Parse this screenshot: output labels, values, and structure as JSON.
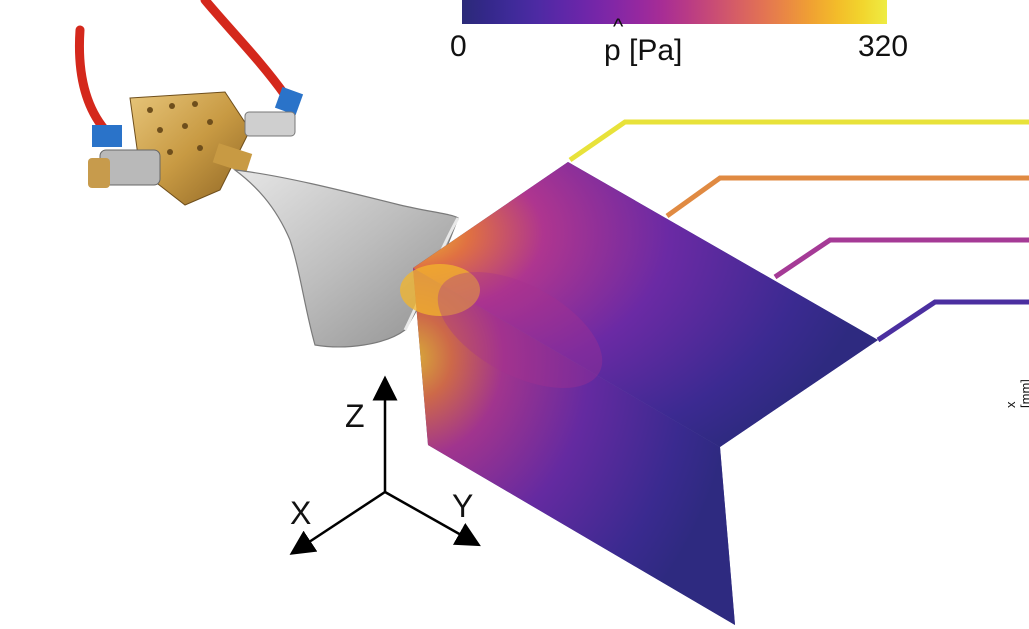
{
  "colorbar": {
    "min_label": "0",
    "max_label": "320",
    "title": "p [Pa]",
    "hat": "^",
    "colors": [
      "#2b2a78",
      "#34288a",
      "#3f2a99",
      "#4d2aa3",
      "#5e27a8",
      "#6f26a9",
      "#8127a6",
      "#9428a0",
      "#a72d95",
      "#b83a86",
      "#c84b76",
      "#d65e65",
      "#e27254",
      "#ea8943",
      "#f0a232",
      "#f3bc2a",
      "#f2d52d",
      "#eeec43"
    ]
  },
  "axes_triad": {
    "z": "Z",
    "x": "X",
    "y": "Y"
  },
  "side_label": "x [mm]",
  "leader_colors": [
    "#e8e23a",
    "#e08a42",
    "#a53a96",
    "#4b2fa0"
  ],
  "field_colors": {
    "base": "#2e2a80",
    "mid": "#6a2aa6",
    "hot": "#b3378e",
    "peak": "#f4b72a"
  }
}
